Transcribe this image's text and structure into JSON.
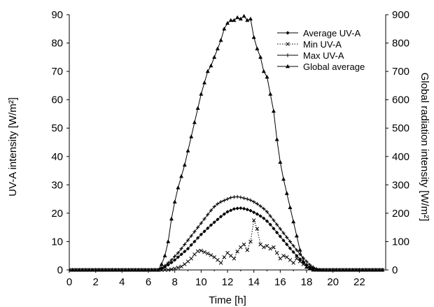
{
  "chart_data": {
    "type": "line",
    "xlabel": "Time [h]",
    "ylabel_left": "UV-A intensity [W/m²]",
    "ylabel_right": "Global radiation intensity [W/m²]",
    "xlim": [
      0,
      24
    ],
    "ylim_left": [
      0,
      90
    ],
    "ylim_right": [
      0,
      900
    ],
    "xticks": [
      0,
      2,
      4,
      6,
      8,
      10,
      12,
      14,
      16,
      18,
      20,
      22
    ],
    "yticks_left": [
      0,
      10,
      20,
      30,
      40,
      50,
      60,
      70,
      80,
      90
    ],
    "yticks_right": [
      0,
      100,
      200,
      300,
      400,
      500,
      600,
      700,
      800,
      900
    ],
    "grid": false,
    "legend_position": "top-right",
    "series": [
      {
        "name": "Average UV-A",
        "axis": "left",
        "marker": "diamond",
        "line": "solid",
        "x": [
          0,
          0.25,
          0.5,
          0.75,
          1,
          1.25,
          1.5,
          1.75,
          2,
          2.25,
          2.5,
          2.75,
          3,
          3.25,
          3.5,
          3.75,
          4,
          4.25,
          4.5,
          4.75,
          5,
          5.25,
          5.5,
          5.75,
          6,
          6.25,
          6.5,
          6.75,
          7,
          7.25,
          7.5,
          7.75,
          8,
          8.25,
          8.5,
          8.75,
          9,
          9.25,
          9.5,
          9.75,
          10,
          10.25,
          10.5,
          10.75,
          11,
          11.25,
          11.5,
          11.75,
          12,
          12.25,
          12.5,
          12.75,
          13,
          13.25,
          13.5,
          13.75,
          14,
          14.25,
          14.5,
          14.75,
          15,
          15.25,
          15.5,
          15.75,
          16,
          16.25,
          16.5,
          16.75,
          17,
          17.25,
          17.5,
          17.75,
          18,
          18.25,
          18.5,
          18.75,
          19,
          19.25,
          19.5,
          19.75,
          20,
          20.25,
          20.5,
          20.75,
          21,
          21.25,
          21.5,
          21.75,
          22,
          22.25,
          22.5,
          22.75,
          23,
          23.25,
          23.5,
          23.75
        ],
        "y": [
          0,
          0,
          0,
          0,
          0,
          0,
          0,
          0,
          0,
          0,
          0,
          0,
          0,
          0,
          0,
          0,
          0,
          0,
          0,
          0,
          0,
          0,
          0,
          0,
          0,
          0,
          0,
          0,
          0.5,
          1,
          1.8,
          2.6,
          3.5,
          4.5,
          5.5,
          6.5,
          7.5,
          8.8,
          10,
          11.3,
          12.5,
          13.6,
          14.7,
          15.8,
          16.8,
          17.8,
          18.8,
          19.7,
          20.5,
          21,
          21.5,
          21.7,
          21.8,
          21.6,
          21.3,
          20.9,
          20.3,
          19.7,
          19,
          18.2,
          17.2,
          16,
          14.6,
          13.2,
          11.8,
          10.4,
          9,
          7.6,
          6.3,
          5,
          3.8,
          2.8,
          1.8,
          1,
          0.5,
          0.2,
          0,
          0,
          0,
          0,
          0,
          0,
          0,
          0,
          0,
          0,
          0,
          0,
          0,
          0,
          0,
          0,
          0,
          0,
          0,
          0
        ]
      },
      {
        "name": "Min UV-A",
        "axis": "left",
        "marker": "x",
        "line": "dotted",
        "x": [
          0,
          0.25,
          0.5,
          0.75,
          1,
          1.25,
          1.5,
          1.75,
          2,
          2.25,
          2.5,
          2.75,
          3,
          3.25,
          3.5,
          3.75,
          4,
          4.25,
          4.5,
          4.75,
          5,
          5.25,
          5.5,
          5.75,
          6,
          6.25,
          6.5,
          6.75,
          7,
          7.25,
          7.5,
          7.75,
          8,
          8.25,
          8.5,
          8.75,
          9,
          9.25,
          9.5,
          9.75,
          10,
          10.25,
          10.5,
          10.75,
          11,
          11.25,
          11.5,
          11.75,
          12,
          12.25,
          12.5,
          12.75,
          13,
          13.25,
          13.5,
          13.75,
          14,
          14.25,
          14.5,
          14.75,
          15,
          15.25,
          15.5,
          15.75,
          16,
          16.25,
          16.5,
          16.75,
          17,
          17.25,
          17.5,
          17.75,
          18,
          18.25,
          18.5,
          18.75,
          19,
          19.25,
          19.5,
          19.75,
          20,
          20.25,
          20.5,
          20.75,
          21,
          21.25,
          21.5,
          21.75,
          22,
          22.25,
          22.5,
          22.75,
          23,
          23.25,
          23.5,
          23.75
        ],
        "y": [
          0,
          0,
          0,
          0,
          0,
          0,
          0,
          0,
          0,
          0,
          0,
          0,
          0,
          0,
          0,
          0,
          0,
          0,
          0,
          0,
          0,
          0,
          0,
          0,
          0,
          0,
          0,
          0,
          0,
          0,
          0,
          0.2,
          0.5,
          0.8,
          1.2,
          2,
          3,
          4,
          5.5,
          6.6,
          6.8,
          6.3,
          5.8,
          5.2,
          4.5,
          3.5,
          2.5,
          4.5,
          6,
          5,
          4,
          6.5,
          8,
          9,
          7,
          10,
          17.5,
          14.5,
          9,
          8,
          8.5,
          7.5,
          8,
          6,
          4,
          5,
          4.5,
          3.5,
          2.5,
          4,
          3,
          2,
          1.2,
          0.6,
          0.2,
          0,
          0,
          0,
          0,
          0,
          0,
          0,
          0,
          0,
          0,
          0,
          0,
          0,
          0,
          0,
          0,
          0,
          0,
          0,
          0,
          0
        ]
      },
      {
        "name": "Max UV-A",
        "axis": "left",
        "marker": "plus",
        "line": "solid",
        "x": [
          0,
          0.25,
          0.5,
          0.75,
          1,
          1.25,
          1.5,
          1.75,
          2,
          2.25,
          2.5,
          2.75,
          3,
          3.25,
          3.5,
          3.75,
          4,
          4.25,
          4.5,
          4.75,
          5,
          5.25,
          5.5,
          5.75,
          6,
          6.25,
          6.5,
          6.75,
          7,
          7.25,
          7.5,
          7.75,
          8,
          8.25,
          8.5,
          8.75,
          9,
          9.25,
          9.5,
          9.75,
          10,
          10.25,
          10.5,
          10.75,
          11,
          11.25,
          11.5,
          11.75,
          12,
          12.25,
          12.5,
          12.75,
          13,
          13.25,
          13.5,
          13.75,
          14,
          14.25,
          14.5,
          14.75,
          15,
          15.25,
          15.5,
          15.75,
          16,
          16.25,
          16.5,
          16.75,
          17,
          17.25,
          17.5,
          17.75,
          18,
          18.25,
          18.5,
          18.75,
          19,
          19.25,
          19.5,
          19.75,
          20,
          20.25,
          20.5,
          20.75,
          21,
          21.25,
          21.5,
          21.75,
          22,
          22.25,
          22.5,
          22.75,
          23,
          23.25,
          23.5,
          23.75
        ],
        "y": [
          0,
          0,
          0,
          0,
          0,
          0,
          0,
          0,
          0,
          0,
          0,
          0,
          0,
          0,
          0,
          0,
          0,
          0,
          0,
          0,
          0,
          0,
          0,
          0,
          0,
          0,
          0,
          0,
          0.8,
          1.5,
          2.5,
          3.5,
          4.8,
          6,
          7.5,
          9,
          10.5,
          12,
          13.5,
          15,
          16.5,
          18,
          19.5,
          21,
          22.3,
          23.3,
          24,
          24.5,
          25,
          25.5,
          25.7,
          25.8,
          25.6,
          25.3,
          25,
          24.6,
          24,
          23.3,
          22.5,
          21.6,
          20.5,
          19,
          17.5,
          16,
          14.5,
          13,
          11.5,
          10,
          8.5,
          7,
          5.5,
          4.2,
          3,
          1.8,
          1,
          0.4,
          0.1,
          0,
          0,
          0,
          0,
          0,
          0,
          0,
          0,
          0,
          0,
          0,
          0,
          0,
          0,
          0,
          0,
          0,
          0,
          0
        ]
      },
      {
        "name": "Global average",
        "axis": "right",
        "marker": "triangle",
        "line": "solid",
        "x": [
          0,
          0.25,
          0.5,
          0.75,
          1,
          1.25,
          1.5,
          1.75,
          2,
          2.25,
          2.5,
          2.75,
          3,
          3.25,
          3.5,
          3.75,
          4,
          4.25,
          4.5,
          4.75,
          5,
          5.25,
          5.5,
          5.75,
          6,
          6.25,
          6.5,
          6.75,
          7,
          7.25,
          7.5,
          7.75,
          8,
          8.25,
          8.5,
          8.75,
          9,
          9.25,
          9.5,
          9.75,
          10,
          10.25,
          10.5,
          10.75,
          11,
          11.25,
          11.5,
          11.75,
          12,
          12.25,
          12.5,
          12.75,
          13,
          13.25,
          13.5,
          13.75,
          14,
          14.25,
          14.5,
          14.75,
          15,
          15.25,
          15.5,
          15.75,
          16,
          16.25,
          16.5,
          16.75,
          17,
          17.25,
          17.5,
          17.75,
          18,
          18.25,
          18.5,
          18.75,
          19,
          19.25,
          19.5,
          19.75,
          20,
          20.25,
          20.5,
          20.75,
          21,
          21.25,
          21.5,
          21.75,
          22,
          22.25,
          22.5,
          22.75,
          23,
          23.25,
          23.5,
          23.75
        ],
        "y": [
          0,
          0,
          0,
          0,
          0,
          0,
          0,
          0,
          0,
          0,
          0,
          0,
          0,
          0,
          0,
          0,
          0,
          0,
          0,
          0,
          0,
          0,
          0,
          0,
          0,
          0,
          0,
          0,
          20,
          50,
          100,
          180,
          240,
          290,
          330,
          370,
          420,
          470,
          520,
          570,
          620,
          660,
          700,
          720,
          750,
          780,
          810,
          850,
          870,
          880,
          880,
          890,
          885,
          895,
          880,
          885,
          820,
          780,
          750,
          700,
          680,
          620,
          560,
          460,
          380,
          320,
          270,
          220,
          170,
          120,
          70,
          30,
          10,
          5,
          0,
          0,
          0,
          0,
          0,
          0,
          0,
          0,
          0,
          0,
          0,
          0,
          0,
          0,
          0,
          0,
          0,
          0,
          0,
          0,
          0,
          0
        ]
      }
    ]
  }
}
